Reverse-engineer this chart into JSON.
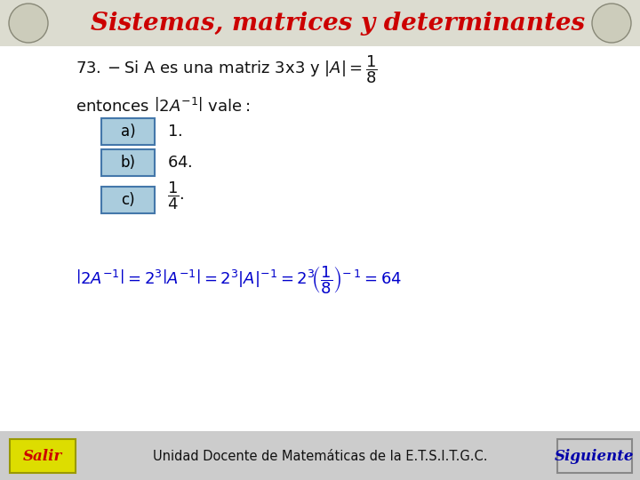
{
  "title": "Sistemas, matrices y determinantes",
  "title_color": "#cc0000",
  "bg_color": "#ffffff",
  "content_bg": "#f5f5f5",
  "header_bg": "#e8e8e0",
  "footer_bg": "#cccccc",
  "footer_text": "Unidad Docente de Matemáticas de la E.T.S.I.T.G.C.",
  "salir_text": "Salir",
  "siguiente_text": "Siguiente",
  "salir_bg": "#dddd00",
  "salir_text_color": "#cc0000",
  "siguiente_bg": "#cccccc",
  "siguiente_text_color": "#0000aa",
  "button_color": "#aaccdd",
  "button_border": "#4477aa",
  "math_color": "#0000cc",
  "text_color": "#111111",
  "title_fontsize": 20,
  "body_fontsize": 13,
  "eq_fontsize": 13
}
